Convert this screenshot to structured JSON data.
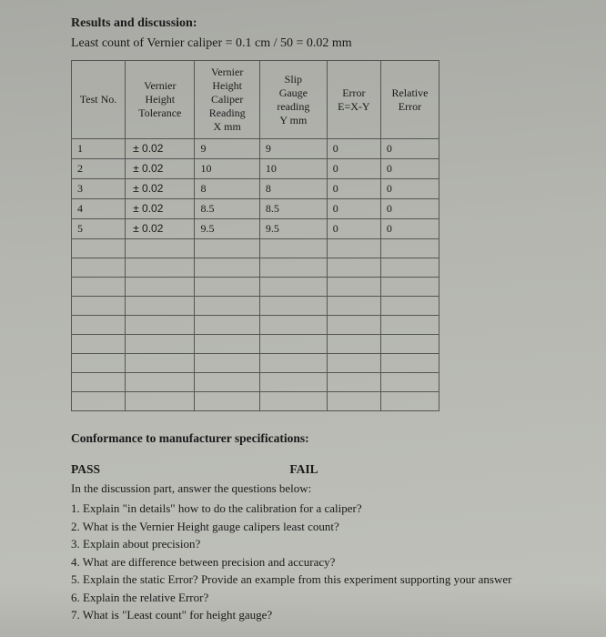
{
  "heading": "Results and discussion:",
  "subtitle": "Least count of Vernier caliper = 0.1 cm / 50 = 0.02 mm",
  "table": {
    "headers": {
      "test_no": "Test No.",
      "tolerance": "Vernier Height Tolerance",
      "x": "Vernier Height Caliper Reading X mm",
      "y": "Slip Gauge reading Y mm",
      "error": "Error E=X-Y",
      "rel_error": "Relative Error"
    },
    "rows": [
      {
        "test": "1",
        "tol": "±  0.02",
        "x": "9",
        "y": "9",
        "err": "0",
        "rel": "0"
      },
      {
        "test": "2",
        "tol": "±  0.02",
        "x": "10",
        "y": "10",
        "err": "0",
        "rel": "0"
      },
      {
        "test": "3",
        "tol": "±  0.02",
        "x": "8",
        "y": "8",
        "err": "0",
        "rel": "0"
      },
      {
        "test": "4",
        "tol": "±  0.02",
        "x": "8.5",
        "y": "8.5",
        "err": "0",
        "rel": "0"
      },
      {
        "test": "5",
        "tol": "±  0.02",
        "x": "9.5",
        "y": "9.5",
        "err": "0",
        "rel": "0"
      }
    ],
    "empty_rows": 9
  },
  "conformance": "Conformance to manufacturer specifications:",
  "pass_label": "PASS",
  "fail_label": "FAIL",
  "discussion_intro": "In the discussion part, answer the questions below:",
  "questions": [
    "1. Explain \"in details\" how to do the calibration for a caliper?",
    "2. What is the Vernier Height gauge calipers least count?",
    "3. Explain about precision?",
    "4. What are difference between precision and accuracy?",
    "5. Explain the static Error? Provide an example from this experiment supporting your answer",
    "6. Explain the relative Error?",
    "7. What is \"Least count\" for height gauge?"
  ],
  "colors": {
    "text": "#1a1a1a",
    "border": "#555555",
    "bg_top": "#a8a9a4",
    "bg_bottom": "#c0c1bb"
  }
}
